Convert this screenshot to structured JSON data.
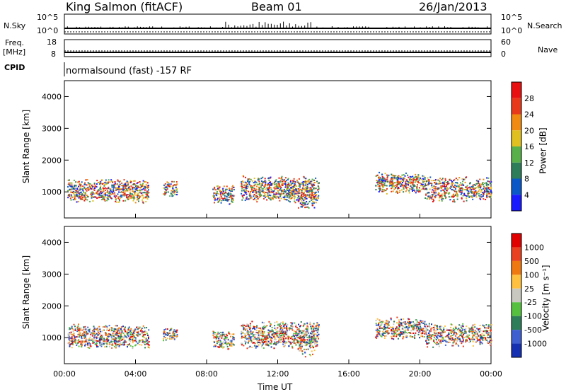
{
  "header": {
    "station": "King Salmon (fitACF)",
    "beam": "Beam 01",
    "date": "26/Jan/2013"
  },
  "panels": {
    "nsky": {
      "label": "N.Sky",
      "ticks": [
        "10^5",
        "10^0"
      ]
    },
    "nsearch": {
      "label": "N.Search",
      "ticks": [
        "10^5",
        "10^0"
      ]
    },
    "freq": {
      "label_line1": "Freq.",
      "label_line2": "[MHz]",
      "ticks": [
        "18",
        "8"
      ]
    },
    "nave": {
      "label": "Nave",
      "ticks": [
        "60",
        "0"
      ]
    },
    "cpid": {
      "label": "CPID",
      "value": "normalsound (fast) -157 RF"
    }
  },
  "chart_data": [
    {
      "type": "heatmap",
      "ylabel": "Slant Range [km]",
      "yticks": [
        "1000",
        "2000",
        "3000",
        "4000"
      ],
      "ylim": [
        180,
        4500
      ],
      "xticks": [
        "00:00",
        "04:00",
        "08:00",
        "12:00",
        "16:00",
        "20:00",
        "00:00"
      ],
      "colorbar": {
        "label": "Power [dB]",
        "ticks": [
          "4",
          "8",
          "12",
          "16",
          "20",
          "24",
          "28"
        ],
        "colors": [
          "#1a1aff",
          "#0a58c8",
          "#2e7d5a",
          "#57b04a",
          "#e0c020",
          "#f08a10",
          "#e83a1a",
          "#e81010"
        ]
      }
    },
    {
      "type": "heatmap",
      "ylabel": "Slant Range [km]",
      "yticks": [
        "1000",
        "2000",
        "3000",
        "4000"
      ],
      "ylim": [
        180,
        4500
      ],
      "xticks": [
        "00:00",
        "04:00",
        "08:00",
        "12:00",
        "16:00",
        "20:00",
        "00:00"
      ],
      "xlabel": "Time UT",
      "colorbar": {
        "label": "Velocity [m s⁻¹]",
        "ticks": [
          "1000",
          "500",
          "100",
          "25",
          "-25",
          "-100",
          "-500",
          "-1000"
        ],
        "colors": [
          "#1530b0",
          "#3f5fd0",
          "#2e7d5a",
          "#55c040",
          "#c8c8c0",
          "#ffc040",
          "#f07810",
          "#e84020",
          "#e00000"
        ]
      }
    }
  ]
}
